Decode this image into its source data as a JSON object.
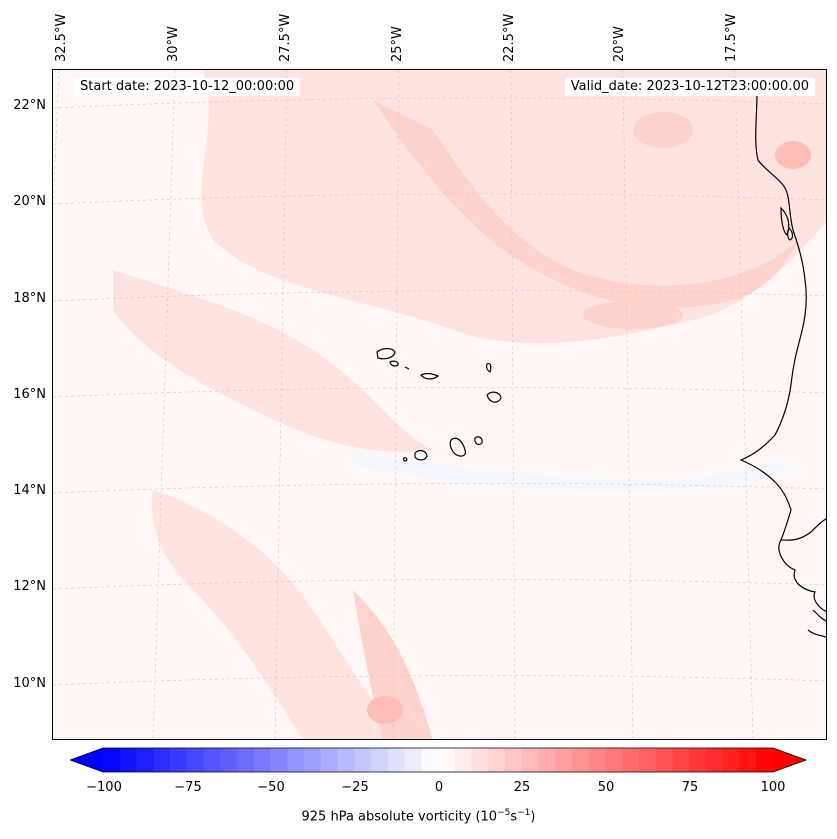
{
  "header": {
    "start_date": "Start date: 2023-10-12_00:00:00",
    "valid_date": "Valid_date: 2023-10-12T23:00:00.00"
  },
  "latitude_labels": [
    "22°N",
    "20°N",
    "18°N",
    "16°N",
    "14°N",
    "12°N",
    "10°N"
  ],
  "longitude_labels": [
    "32.5°W",
    "30°W",
    "27.5°W",
    "25°W",
    "22.5°W",
    "20°W",
    "17.5°W"
  ],
  "colorbar": {
    "min": -100,
    "max": 100,
    "ticks": [
      "−100",
      "−75",
      "−50",
      "−25",
      "0",
      "25",
      "50",
      "75",
      "100"
    ],
    "label_prefix": "925 hPa absolute vorticity (10",
    "label_exp1": "−5",
    "label_mid": "s",
    "label_exp2": "−1",
    "label_suffix": ")",
    "color_negative": "#0000ff",
    "color_zero": "#ffffff",
    "color_positive": "#ff0000"
  },
  "colors": {
    "field_base": "#fff7f6",
    "field_light": "#ffe3e0",
    "field_mid": "#ffd2cc",
    "field_strong": "#ffbdb5",
    "field_blue": "#f5f7ff",
    "coastline": "#000000",
    "gridline": "#c8c8c8"
  }
}
